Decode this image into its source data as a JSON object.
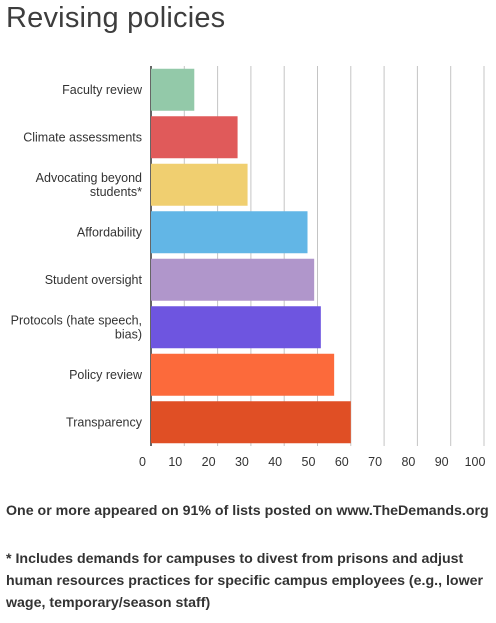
{
  "chart_data": {
    "type": "bar",
    "orientation": "horizontal",
    "title": "Revising policies",
    "categories": [
      [
        "Faculty review"
      ],
      [
        "Climate assessments"
      ],
      [
        "Advocating beyond",
        "students*"
      ],
      [
        "Affordability"
      ],
      [
        "Student oversight"
      ],
      [
        "Protocols (hate speech,",
        "bias)"
      ],
      [
        "Policy review"
      ],
      [
        "Transparency"
      ]
    ],
    "values": [
      13,
      26,
      29,
      47,
      49,
      51,
      55,
      60
    ],
    "colors": [
      "#93c9a9",
      "#e05a5a",
      "#f0cf70",
      "#62b6e6",
      "#b096cb",
      "#6e55e0",
      "#fc6a3b",
      "#e04f25"
    ],
    "xlim": [
      0,
      100
    ],
    "xticks": [
      0,
      10,
      20,
      30,
      40,
      50,
      60,
      70,
      80,
      90,
      100
    ],
    "grid": true,
    "xlabel": "",
    "ylabel": ""
  },
  "notes": {
    "line1": "One or more appeared on 91% of lists posted on www.TheDemands.org",
    "line2": "* Includes demands for campuses to divest from prisons and adjust human resources practices for specific campus employees (e.g., lower wage, temporary/season staff)"
  }
}
